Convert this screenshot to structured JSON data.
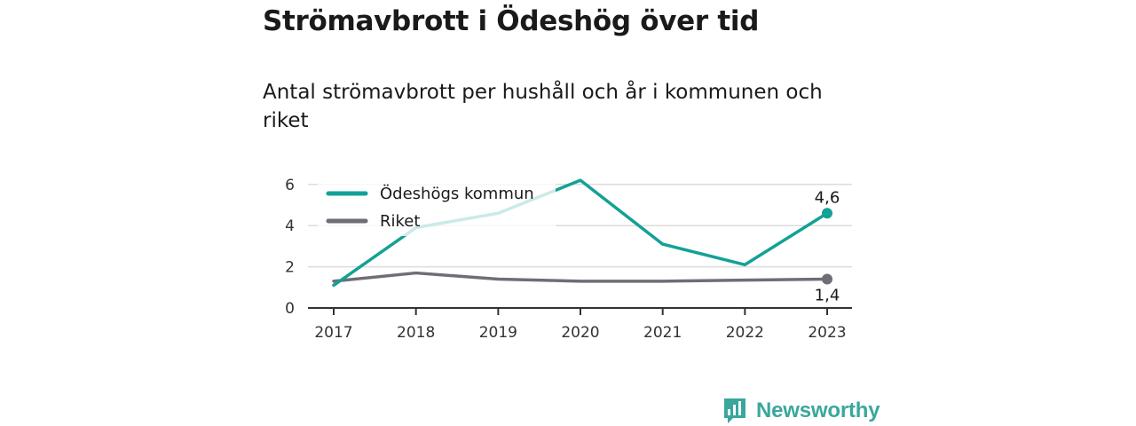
{
  "header": {
    "title": "Strömavbrott i Ödeshög över tid",
    "subtitle": "Antal strömavbrott per hushåll och år i kommunen och riket"
  },
  "brand": {
    "name": "Newsworthy",
    "color": "#3aa79c",
    "icon": "bar-chart-speech-bubble-icon"
  },
  "chart_data": {
    "type": "line",
    "x": [
      "2017",
      "2018",
      "2019",
      "2020",
      "2021",
      "2022",
      "2023"
    ],
    "yticks": [
      "0",
      "2",
      "4",
      "6"
    ],
    "ylim": [
      0,
      6.6
    ],
    "grid": true,
    "legend_position": "top-left",
    "series": [
      {
        "name": "Ödeshögs kommun",
        "color": "#13a196",
        "values": [
          1.1,
          3.9,
          4.6,
          6.2,
          3.1,
          2.1,
          4.6
        ],
        "end_label": "4,6"
      },
      {
        "name": "Riket",
        "color": "#6e6e76",
        "values": [
          1.3,
          1.7,
          1.4,
          1.3,
          1.3,
          1.35,
          1.4
        ],
        "end_label": "1,4"
      }
    ]
  }
}
